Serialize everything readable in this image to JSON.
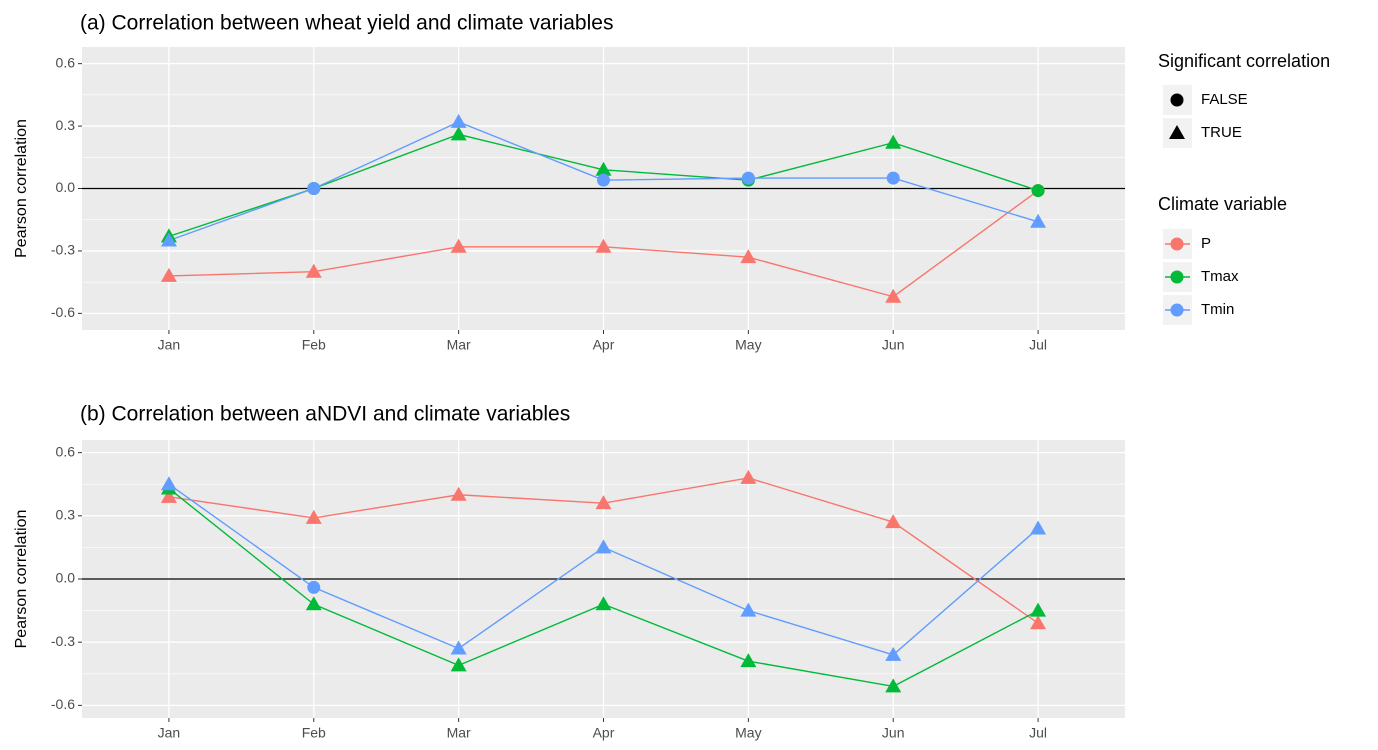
{
  "chart_data": [
    {
      "type": "line",
      "title": "(a) Correlation between wheat yield and climate variables",
      "ylabel": "Pearson correlation",
      "categories": [
        "Jan",
        "Feb",
        "Mar",
        "Apr",
        "May",
        "Jun",
        "Jul"
      ],
      "series": [
        {
          "name": "P",
          "color": "#F8766D",
          "values": [
            -0.42,
            -0.4,
            -0.28,
            -0.28,
            -0.33,
            -0.52,
            -0.01
          ],
          "significant": [
            true,
            true,
            true,
            true,
            true,
            true,
            false
          ]
        },
        {
          "name": "Tmax",
          "color": "#00BA38",
          "values": [
            -0.23,
            0.0,
            0.26,
            0.09,
            0.04,
            0.22,
            -0.01
          ],
          "significant": [
            true,
            false,
            true,
            true,
            false,
            true,
            false
          ]
        },
        {
          "name": "Tmin",
          "color": "#619CFF",
          "values": [
            -0.25,
            0.0,
            0.32,
            0.04,
            0.05,
            0.05,
            -0.16
          ],
          "significant": [
            true,
            false,
            true,
            false,
            false,
            false,
            true
          ]
        }
      ],
      "ylim": [
        -0.68,
        0.68
      ],
      "yticks": [
        -0.6,
        -0.3,
        {
          "value": 0,
          "label": "0.0"
        },
        0.3,
        0.6
      ],
      "grid": true,
      "reference_line": 0,
      "legend_position": "right",
      "shape_legend": {
        "title": "Significant correlation",
        "labels": [
          "FALSE",
          "TRUE"
        ]
      },
      "color_legend_title": "Climate variable"
    },
    {
      "type": "line",
      "title": "(b) Correlation between aNDVI and climate variables",
      "ylabel": "Pearson correlation",
      "categories": [
        "Jan",
        "Feb",
        "Mar",
        "Apr",
        "May",
        "Jun",
        "Jul"
      ],
      "series": [
        {
          "name": "P",
          "color": "#F8766D",
          "values": [
            0.39,
            0.29,
            0.4,
            0.36,
            0.48,
            0.27,
            -0.21
          ],
          "significant": [
            true,
            true,
            true,
            true,
            true,
            true,
            true
          ]
        },
        {
          "name": "Tmax",
          "color": "#00BA38",
          "values": [
            0.43,
            -0.12,
            -0.41,
            -0.12,
            -0.39,
            -0.51,
            -0.15
          ],
          "significant": [
            true,
            true,
            true,
            true,
            true,
            true,
            true
          ]
        },
        {
          "name": "Tmin",
          "color": "#619CFF",
          "values": [
            0.45,
            -0.04,
            -0.33,
            0.15,
            -0.15,
            -0.36,
            0.24
          ],
          "significant": [
            true,
            false,
            true,
            true,
            true,
            true,
            true
          ]
        }
      ],
      "ylim": [
        -0.66,
        0.66
      ],
      "yticks": [
        -0.6,
        -0.3,
        {
          "value": 0,
          "label": "0.0"
        },
        0.3,
        0.6
      ],
      "grid": true,
      "reference_line": 0
    }
  ]
}
